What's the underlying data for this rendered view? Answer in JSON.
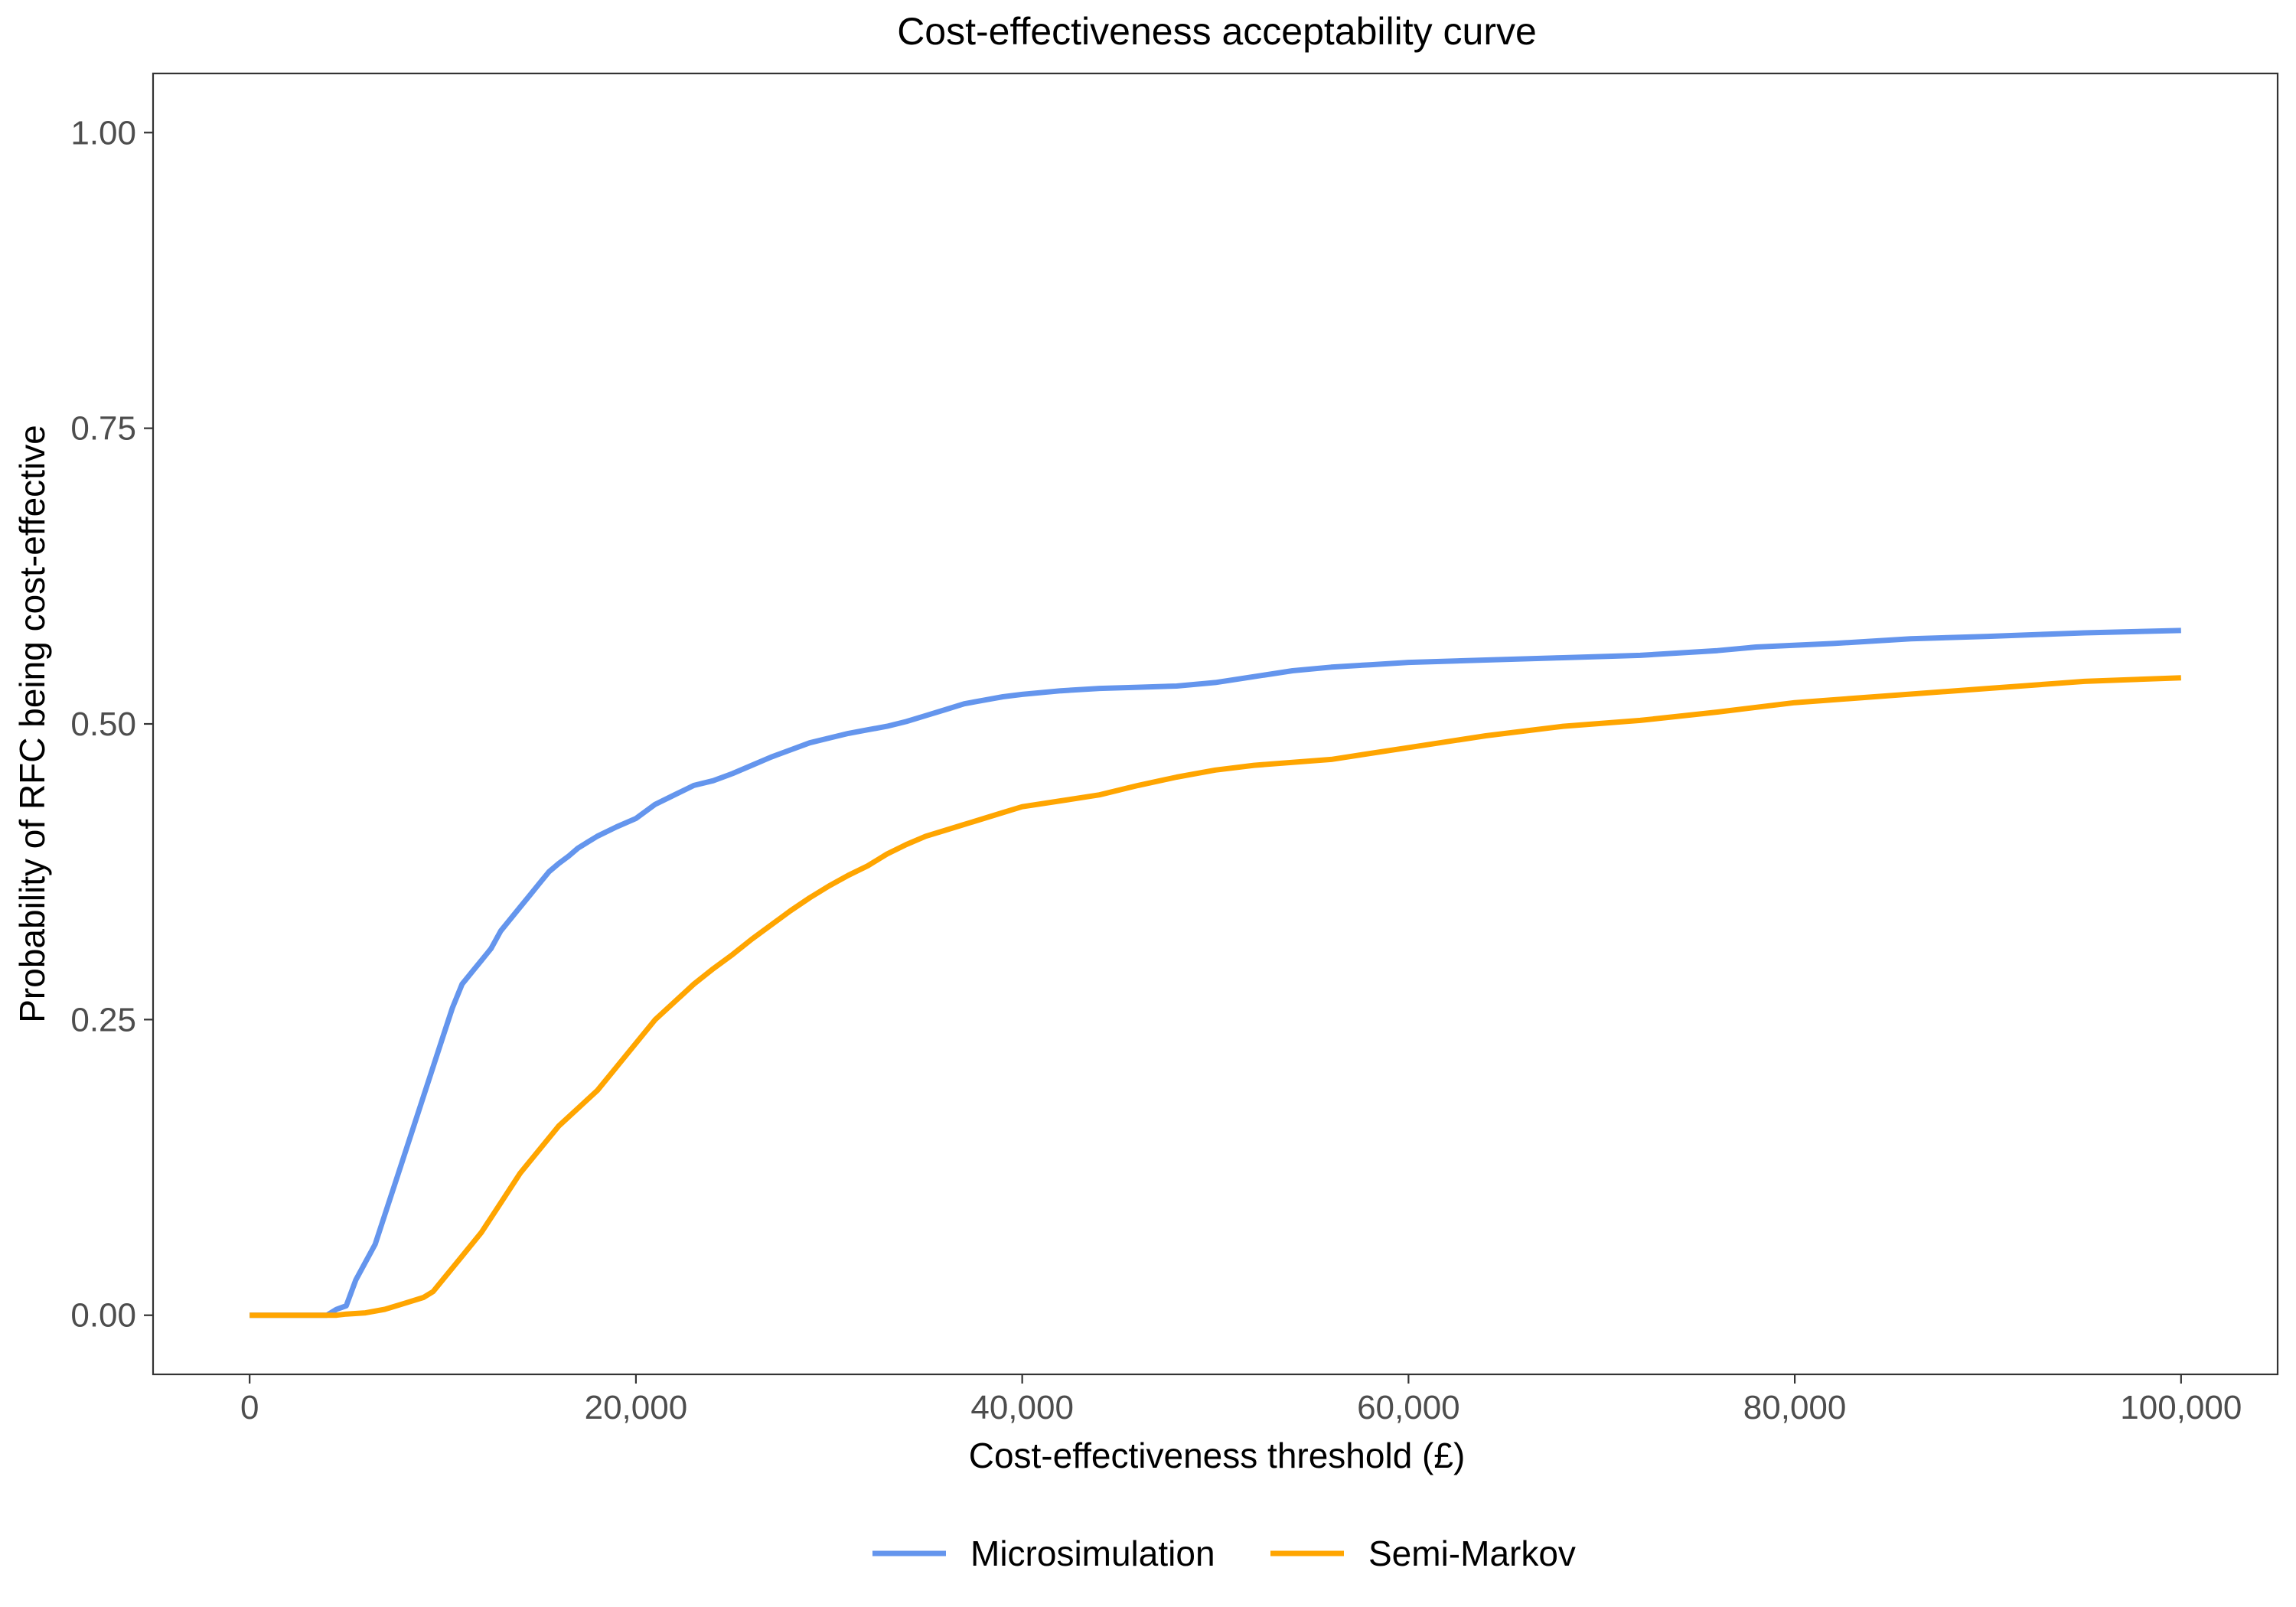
{
  "chart_data": {
    "type": "line",
    "title": "Cost-effectiveness acceptability curve",
    "xlabel": "Cost-effectiveness threshold (£)",
    "ylabel": "Probability of RFC being cost-effective",
    "xlim": [
      -5000,
      105000
    ],
    "ylim": [
      -0.05,
      1.05
    ],
    "x_ticks": [
      0,
      20000,
      40000,
      60000,
      80000,
      100000
    ],
    "x_tick_labels": [
      "0",
      "20,000",
      "40,000",
      "60,000",
      "80,000",
      "100,000"
    ],
    "y_ticks": [
      0,
      0.25,
      0.5,
      0.75,
      1.0
    ],
    "y_tick_labels": [
      "0.00",
      "0.25",
      "0.50",
      "0.75",
      "1.00"
    ],
    "grid": false,
    "legend_position": "bottom",
    "series": [
      {
        "name": "Microsimulation",
        "color": "#6495ED",
        "x": [
          0,
          4000,
          4500,
          5000,
          5500,
          6000,
          6500,
          7000,
          7500,
          8000,
          8500,
          9000,
          9500,
          10000,
          10500,
          11000,
          11500,
          12000,
          12500,
          13000,
          13500,
          14000,
          14500,
          15000,
          15500,
          16000,
          16500,
          17000,
          17500,
          18000,
          19000,
          20000,
          21000,
          22000,
          23000,
          24000,
          25000,
          26000,
          27000,
          28000,
          29000,
          30000,
          31000,
          32000,
          33000,
          34000,
          35000,
          36000,
          37000,
          38000,
          39000,
          40000,
          42000,
          44000,
          46000,
          48000,
          50000,
          52000,
          54000,
          56000,
          58000,
          60000,
          64000,
          68000,
          72000,
          76000,
          78000,
          82000,
          86000,
          90000,
          95000,
          100000
        ],
        "y": [
          0,
          0,
          0.005,
          0.008,
          0.03,
          0.045,
          0.06,
          0.085,
          0.11,
          0.135,
          0.16,
          0.185,
          0.21,
          0.235,
          0.26,
          0.28,
          0.29,
          0.3,
          0.31,
          0.325,
          0.335,
          0.345,
          0.355,
          0.365,
          0.375,
          0.382,
          0.388,
          0.395,
          0.4,
          0.405,
          0.413,
          0.42,
          0.432,
          0.44,
          0.448,
          0.452,
          0.458,
          0.465,
          0.472,
          0.478,
          0.484,
          0.488,
          0.492,
          0.495,
          0.498,
          0.502,
          0.507,
          0.512,
          0.517,
          0.52,
          0.523,
          0.525,
          0.528,
          0.53,
          0.531,
          0.532,
          0.535,
          0.54,
          0.545,
          0.548,
          0.55,
          0.552,
          0.554,
          0.556,
          0.558,
          0.562,
          0.565,
          0.568,
          0.572,
          0.574,
          0.577,
          0.579
        ]
      },
      {
        "name": "Semi-Markov",
        "color": "#FFA500",
        "x": [
          0,
          4500,
          5000,
          6000,
          7000,
          8000,
          9000,
          9500,
          10000,
          11000,
          12000,
          13000,
          14000,
          15000,
          16000,
          17000,
          18000,
          19000,
          20000,
          21000,
          22000,
          23000,
          24000,
          25000,
          26000,
          27000,
          28000,
          29000,
          30000,
          31000,
          32000,
          33000,
          34000,
          35000,
          36000,
          37000,
          38000,
          39000,
          40000,
          42000,
          44000,
          46000,
          48000,
          50000,
          52000,
          56000,
          60000,
          64000,
          68000,
          72000,
          76000,
          80000,
          85000,
          90000,
          95000,
          100000
        ],
        "y": [
          0,
          0,
          0.001,
          0.002,
          0.005,
          0.01,
          0.015,
          0.02,
          0.03,
          0.05,
          0.07,
          0.095,
          0.12,
          0.14,
          0.16,
          0.175,
          0.19,
          0.21,
          0.23,
          0.25,
          0.265,
          0.28,
          0.293,
          0.305,
          0.318,
          0.33,
          0.342,
          0.353,
          0.363,
          0.372,
          0.38,
          0.39,
          0.398,
          0.405,
          0.41,
          0.415,
          0.42,
          0.425,
          0.43,
          0.435,
          0.44,
          0.448,
          0.455,
          0.461,
          0.465,
          0.47,
          0.48,
          0.49,
          0.498,
          0.503,
          0.51,
          0.518,
          0.524,
          0.53,
          0.536,
          0.539
        ]
      }
    ]
  }
}
